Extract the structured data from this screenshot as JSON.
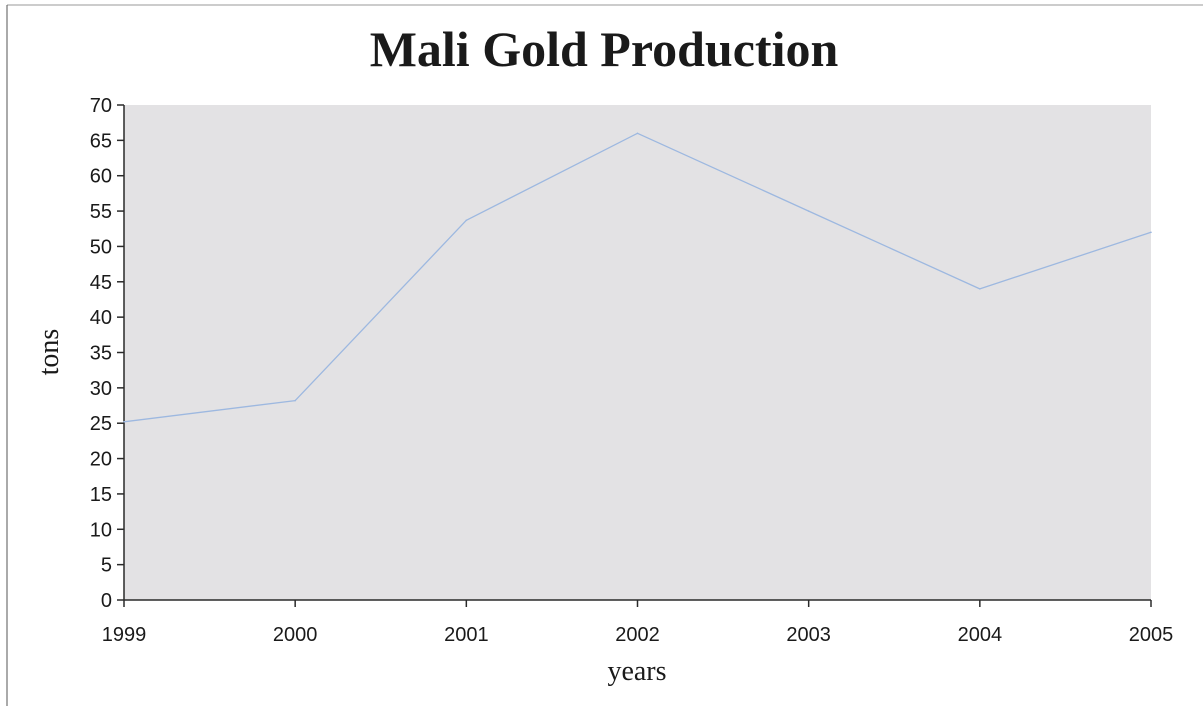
{
  "chart_data": {
    "type": "line",
    "title": "Mali Gold Production",
    "xlabel": "years",
    "ylabel": "tons",
    "x": [
      1999,
      2000,
      2001,
      2002,
      2003,
      2004,
      2005
    ],
    "series": [
      {
        "values": [
          25.2,
          28.2,
          53.7,
          66,
          55,
          44,
          52
        ]
      }
    ],
    "ylim": [
      0,
      70
    ],
    "y_ticks": [
      0,
      5,
      10,
      15,
      20,
      25,
      30,
      35,
      40,
      45,
      50,
      55,
      60,
      65,
      70
    ],
    "grid": false,
    "legend": "none",
    "colors": {
      "line": "#9db8e0",
      "plot_background": "#e3e2e4",
      "axis": "#2a2a2a",
      "frame": "#999999"
    }
  }
}
